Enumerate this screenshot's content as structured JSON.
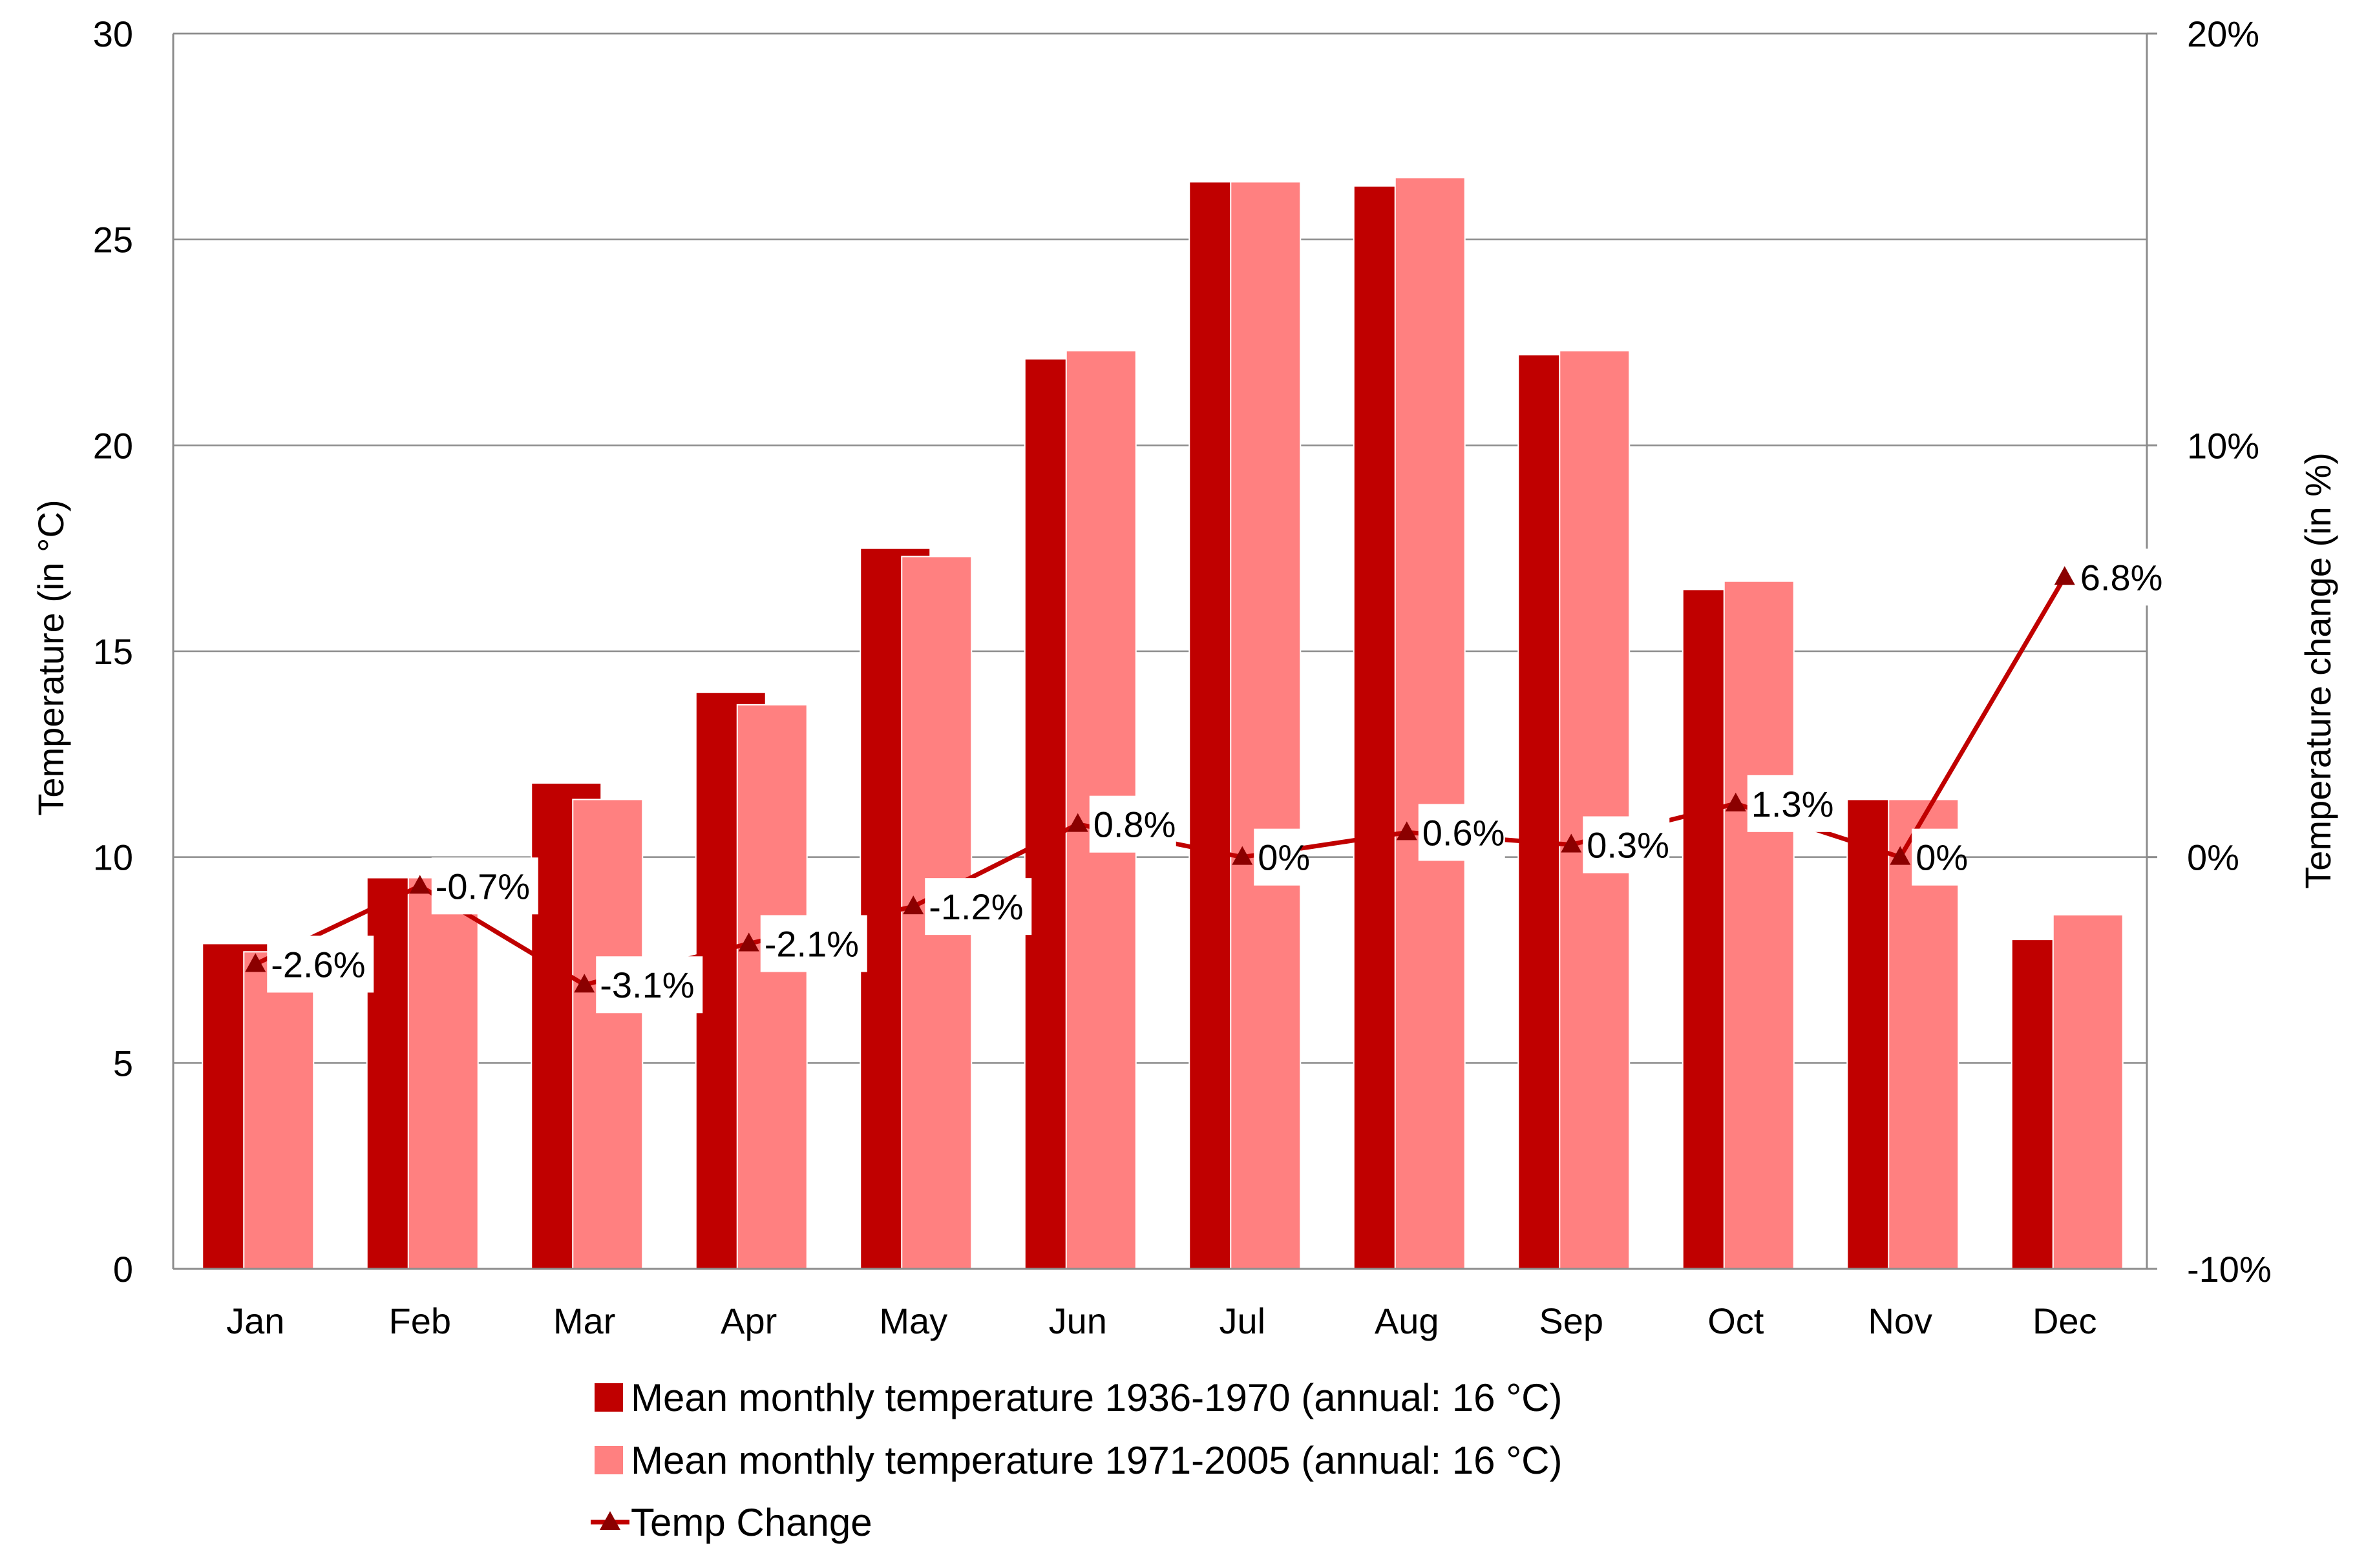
{
  "chart_data": {
    "type": "bar",
    "categories": [
      "Jan",
      "Feb",
      "Mar",
      "Apr",
      "May",
      "Jun",
      "Jul",
      "Aug",
      "Sep",
      "Oct",
      "Nov",
      "Dec"
    ],
    "series": [
      {
        "name": "Mean monthly temperature 1936-1970 (annual: 16 °C)",
        "type": "bar",
        "axis": "left",
        "color": "#c00000",
        "values": [
          7.9,
          9.5,
          11.8,
          14.0,
          17.5,
          22.1,
          26.4,
          26.3,
          22.2,
          16.5,
          11.4,
          8.0
        ]
      },
      {
        "name": "Mean monthly temperature 1971-2005 (annual: 16 °C)",
        "type": "bar",
        "axis": "left",
        "color": "#ff8080",
        "values": [
          7.7,
          9.5,
          11.4,
          13.7,
          17.3,
          22.3,
          26.4,
          26.5,
          22.3,
          16.7,
          11.4,
          8.6
        ]
      },
      {
        "name": "Temp Change",
        "type": "line",
        "axis": "right",
        "color": "#c00000",
        "marker": "triangle",
        "values": [
          -2.6,
          -0.7,
          -3.1,
          -2.1,
          -1.2,
          0.8,
          0.0,
          0.6,
          0.3,
          1.3,
          0.0,
          6.8
        ],
        "labels": [
          "-2.6%",
          "-0.7%",
          "-3.1%",
          "-2.1%",
          "-1.2%",
          "0.8%",
          "0%",
          "0.6%",
          "0.3%",
          "1.3%",
          "0%",
          "6.8%"
        ]
      }
    ],
    "title": "",
    "xlabel": "",
    "ylabel": "Temperature  (in °C)",
    "ylabel_right": "Temperature  change  (in %)",
    "ylim": [
      0,
      30
    ],
    "yticks": [
      "0",
      "5",
      "10",
      "15",
      "20",
      "25",
      "30"
    ],
    "ylim_right": [
      -10,
      20
    ],
    "yticks_right": [
      "-10%",
      "0%",
      "10%",
      "20%"
    ],
    "grid": true,
    "legend": "bottom"
  }
}
